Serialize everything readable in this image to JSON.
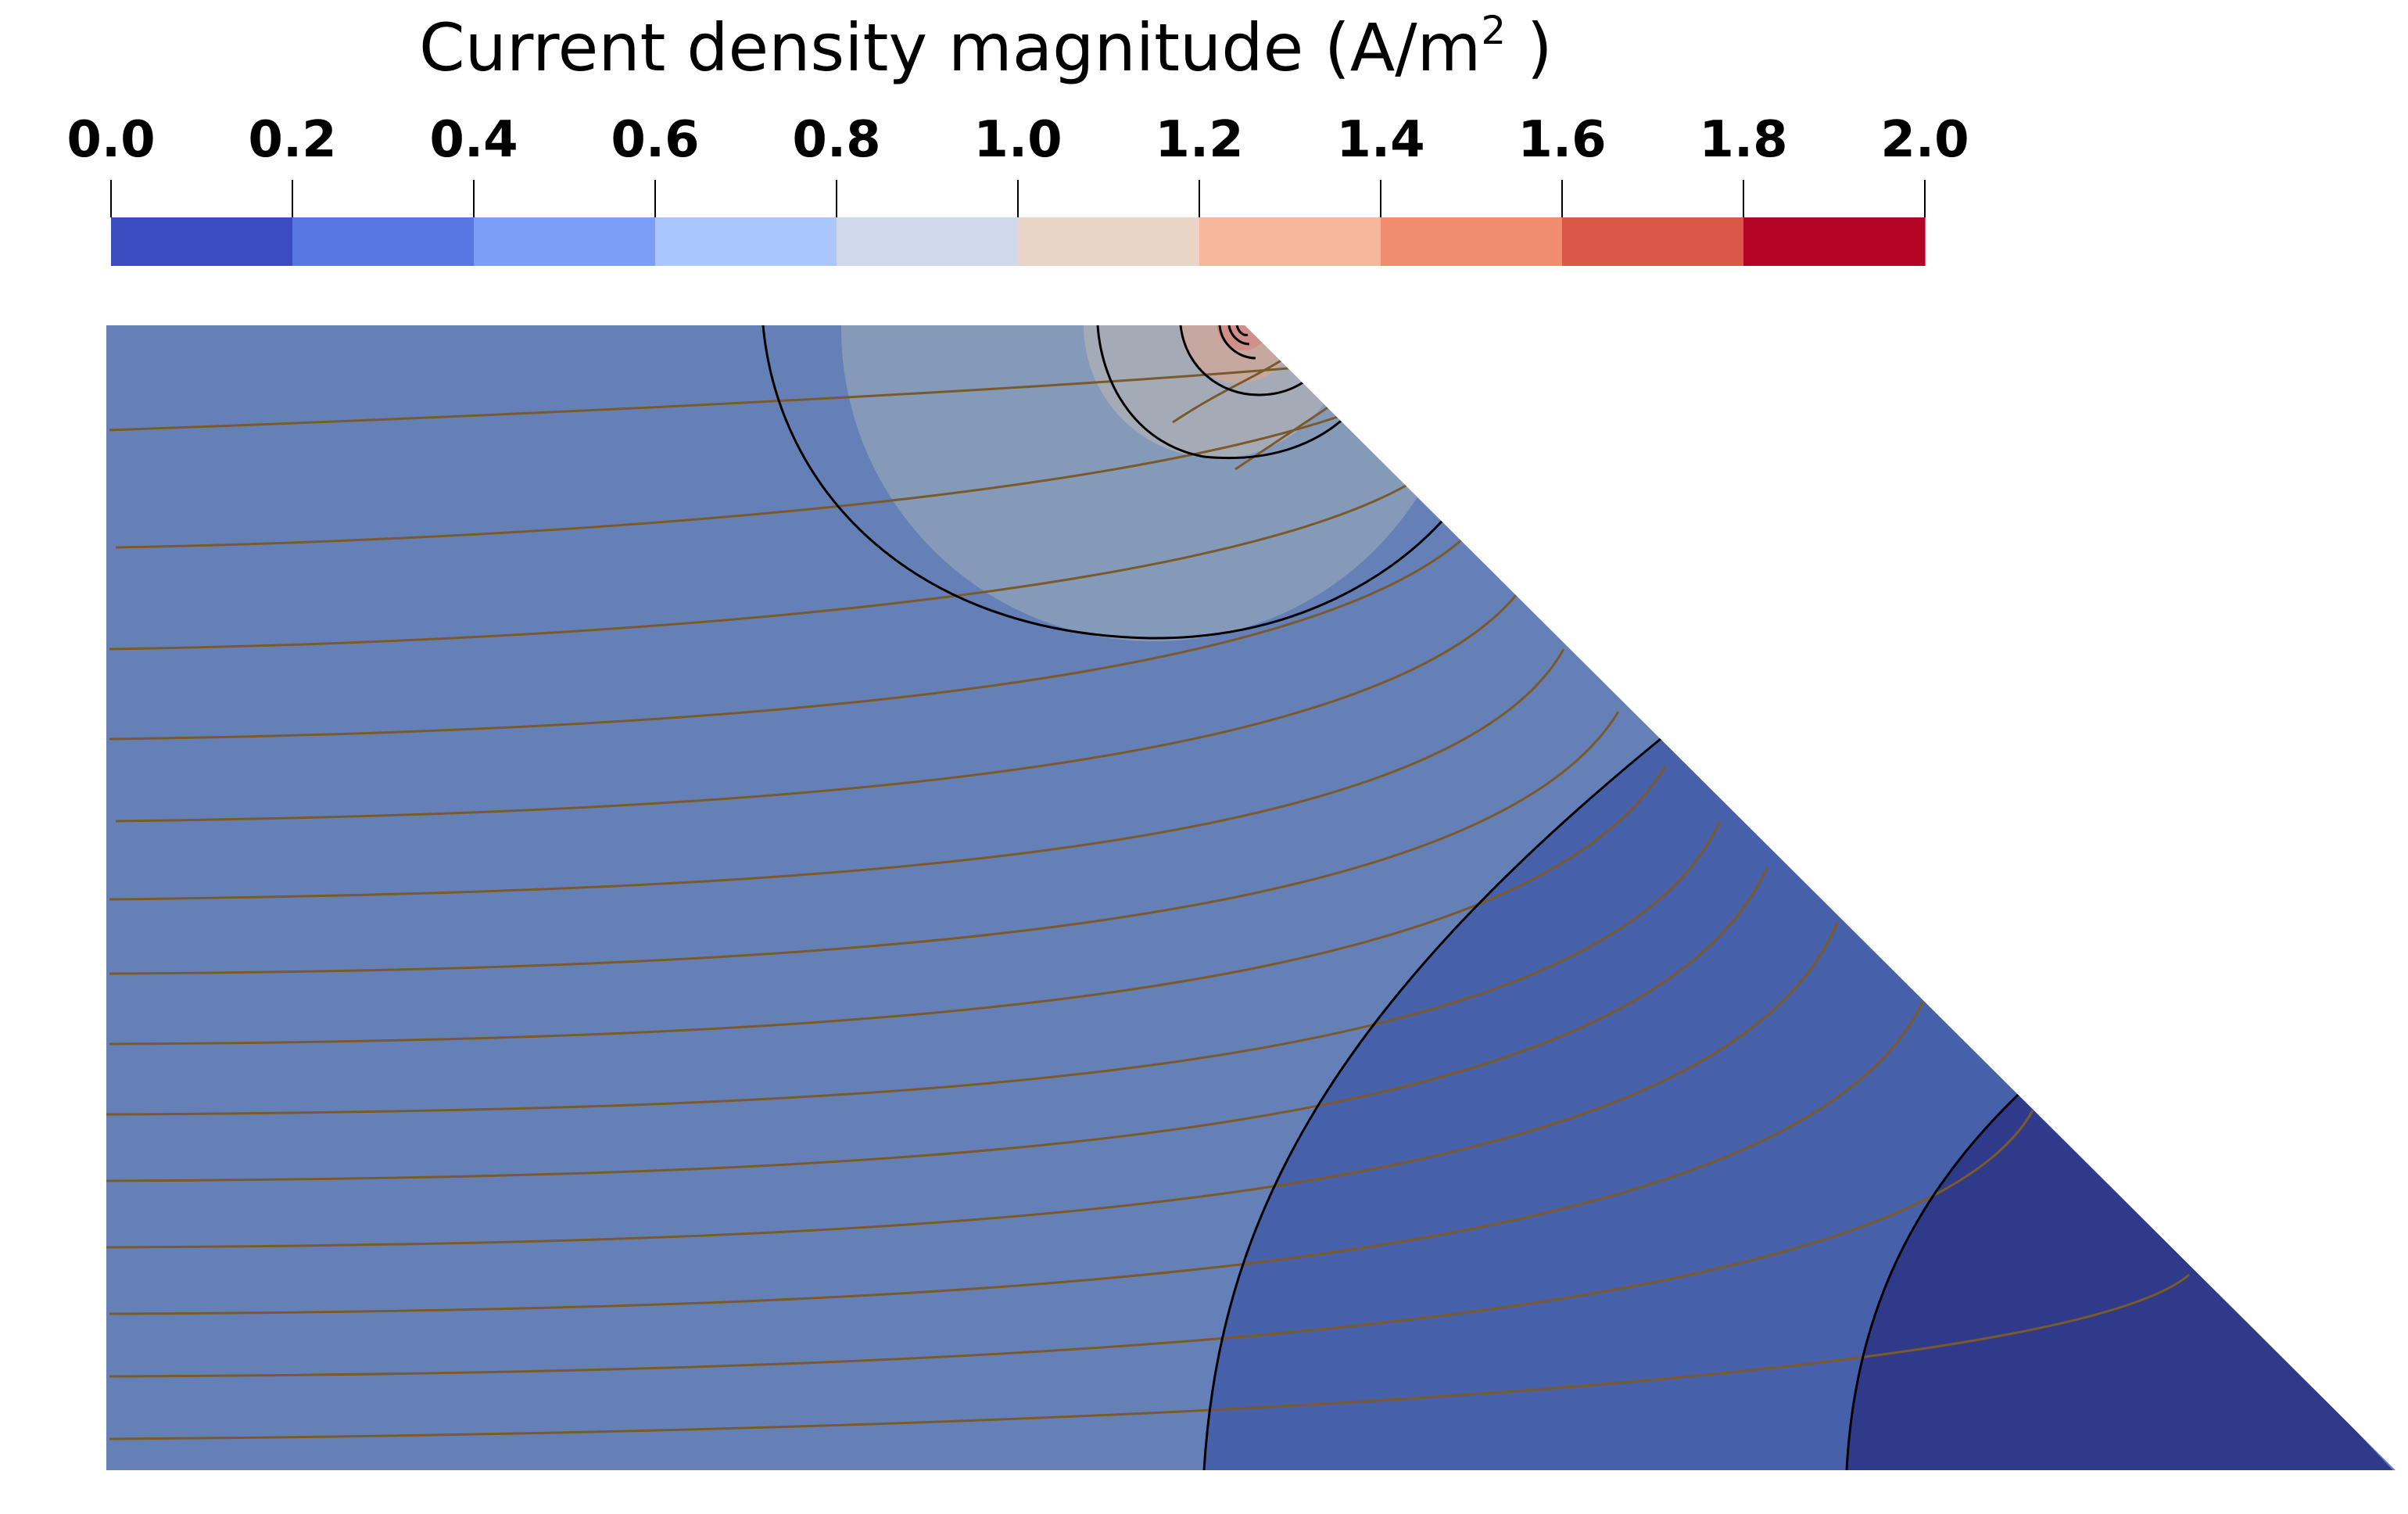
{
  "colorbar": {
    "title_main": "Current density magnitude (A/m",
    "title_sup": "2",
    "title_close": " )",
    "ticks": [
      "0.0",
      "0.2",
      "0.4",
      "0.6",
      "0.8",
      "1.0",
      "1.2",
      "1.4",
      "1.6",
      "1.8",
      "2.0"
    ],
    "bin_colors": [
      "#3b4cc0",
      "#5977e3",
      "#7b9ff9",
      "#a9c6fd",
      "#d0d8eb",
      "#ead4c8",
      "#f6b79a",
      "#f18d6f",
      "#d95847",
      "#b40426"
    ],
    "range": [
      0.0,
      2.0
    ],
    "colormap": "cool-to-warm (coolwarm)",
    "discrete_bins": 10
  },
  "plot": {
    "geometry": "trapezoid (right edge cut at 45 degrees)",
    "region_colors": {
      "background": "#6580b7",
      "near_hotspot": "#8599b9",
      "hotspot_inner": "#a4aab6",
      "hotspot_core": "#c7a8a0",
      "hotspot_peak": "#d0908a",
      "lower_right": "#4760aa",
      "lower_right_corner": "#2f3a8a"
    },
    "contour_color": "#000000",
    "streamline_color": "#7a5a2a",
    "streamline_count": 16
  }
}
